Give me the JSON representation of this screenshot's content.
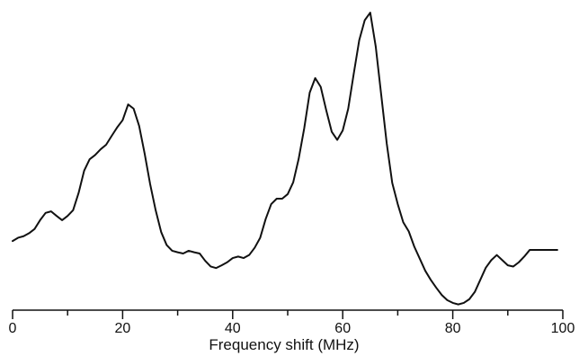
{
  "chart_data": {
    "type": "line",
    "xlabel": "Frequency shift (MHz)",
    "ylabel": "",
    "title": "",
    "xlim": [
      0,
      100
    ],
    "ylim": [
      0,
      1
    ],
    "grid": false,
    "x_ticks_major": [
      0,
      20,
      40,
      60,
      80,
      100
    ],
    "x_ticks_minor": [
      10,
      30,
      50,
      70,
      90
    ],
    "x_tick_labels": [
      "0",
      "20",
      "40",
      "60",
      "80",
      "100"
    ],
    "line_color": "#111111",
    "series": [
      {
        "x": [
          0,
          1,
          2,
          3,
          4,
          5,
          6,
          7,
          8,
          9,
          10,
          11,
          12,
          13,
          14,
          15,
          16,
          17,
          18,
          19,
          20,
          21,
          22,
          23,
          24,
          25,
          26,
          27,
          28,
          29,
          30,
          31,
          32,
          33,
          34,
          35,
          36,
          37,
          38,
          39,
          40,
          41,
          42,
          43,
          44,
          45,
          46,
          47,
          48,
          49,
          50,
          51,
          52,
          53,
          54,
          55,
          56,
          57,
          58,
          59,
          60,
          61,
          62,
          63,
          64,
          65,
          66,
          67,
          68,
          69,
          70,
          71,
          72,
          73,
          74,
          75,
          76,
          77,
          78,
          79,
          80,
          81,
          82,
          83,
          84,
          85,
          86,
          87,
          88,
          89,
          90,
          91,
          92,
          93,
          94,
          95,
          96,
          97,
          98,
          99
        ],
        "values": [
          0.228,
          0.239,
          0.244,
          0.254,
          0.268,
          0.297,
          0.321,
          0.326,
          0.311,
          0.297,
          0.311,
          0.33,
          0.387,
          0.46,
          0.498,
          0.512,
          0.531,
          0.546,
          0.575,
          0.603,
          0.627,
          0.679,
          0.665,
          0.608,
          0.517,
          0.416,
          0.33,
          0.258,
          0.215,
          0.196,
          0.191,
          0.187,
          0.196,
          0.191,
          0.187,
          0.163,
          0.144,
          0.139,
          0.148,
          0.158,
          0.172,
          0.177,
          0.172,
          0.182,
          0.206,
          0.239,
          0.301,
          0.35,
          0.368,
          0.368,
          0.383,
          0.422,
          0.5,
          0.6,
          0.718,
          0.766,
          0.737,
          0.66,
          0.589,
          0.562,
          0.593,
          0.665,
          0.78,
          0.891,
          0.957,
          0.982,
          0.87,
          0.71,
          0.55,
          0.42,
          0.35,
          0.29,
          0.26,
          0.21,
          0.17,
          0.13,
          0.1,
          0.074,
          0.05,
          0.033,
          0.024,
          0.019,
          0.024,
          0.036,
          0.06,
          0.1,
          0.14,
          0.165,
          0.182,
          0.165,
          0.148,
          0.144,
          0.158,
          0.177,
          0.199,
          0.199,
          0.199,
          0.199,
          0.199,
          0.199
        ]
      }
    ]
  }
}
